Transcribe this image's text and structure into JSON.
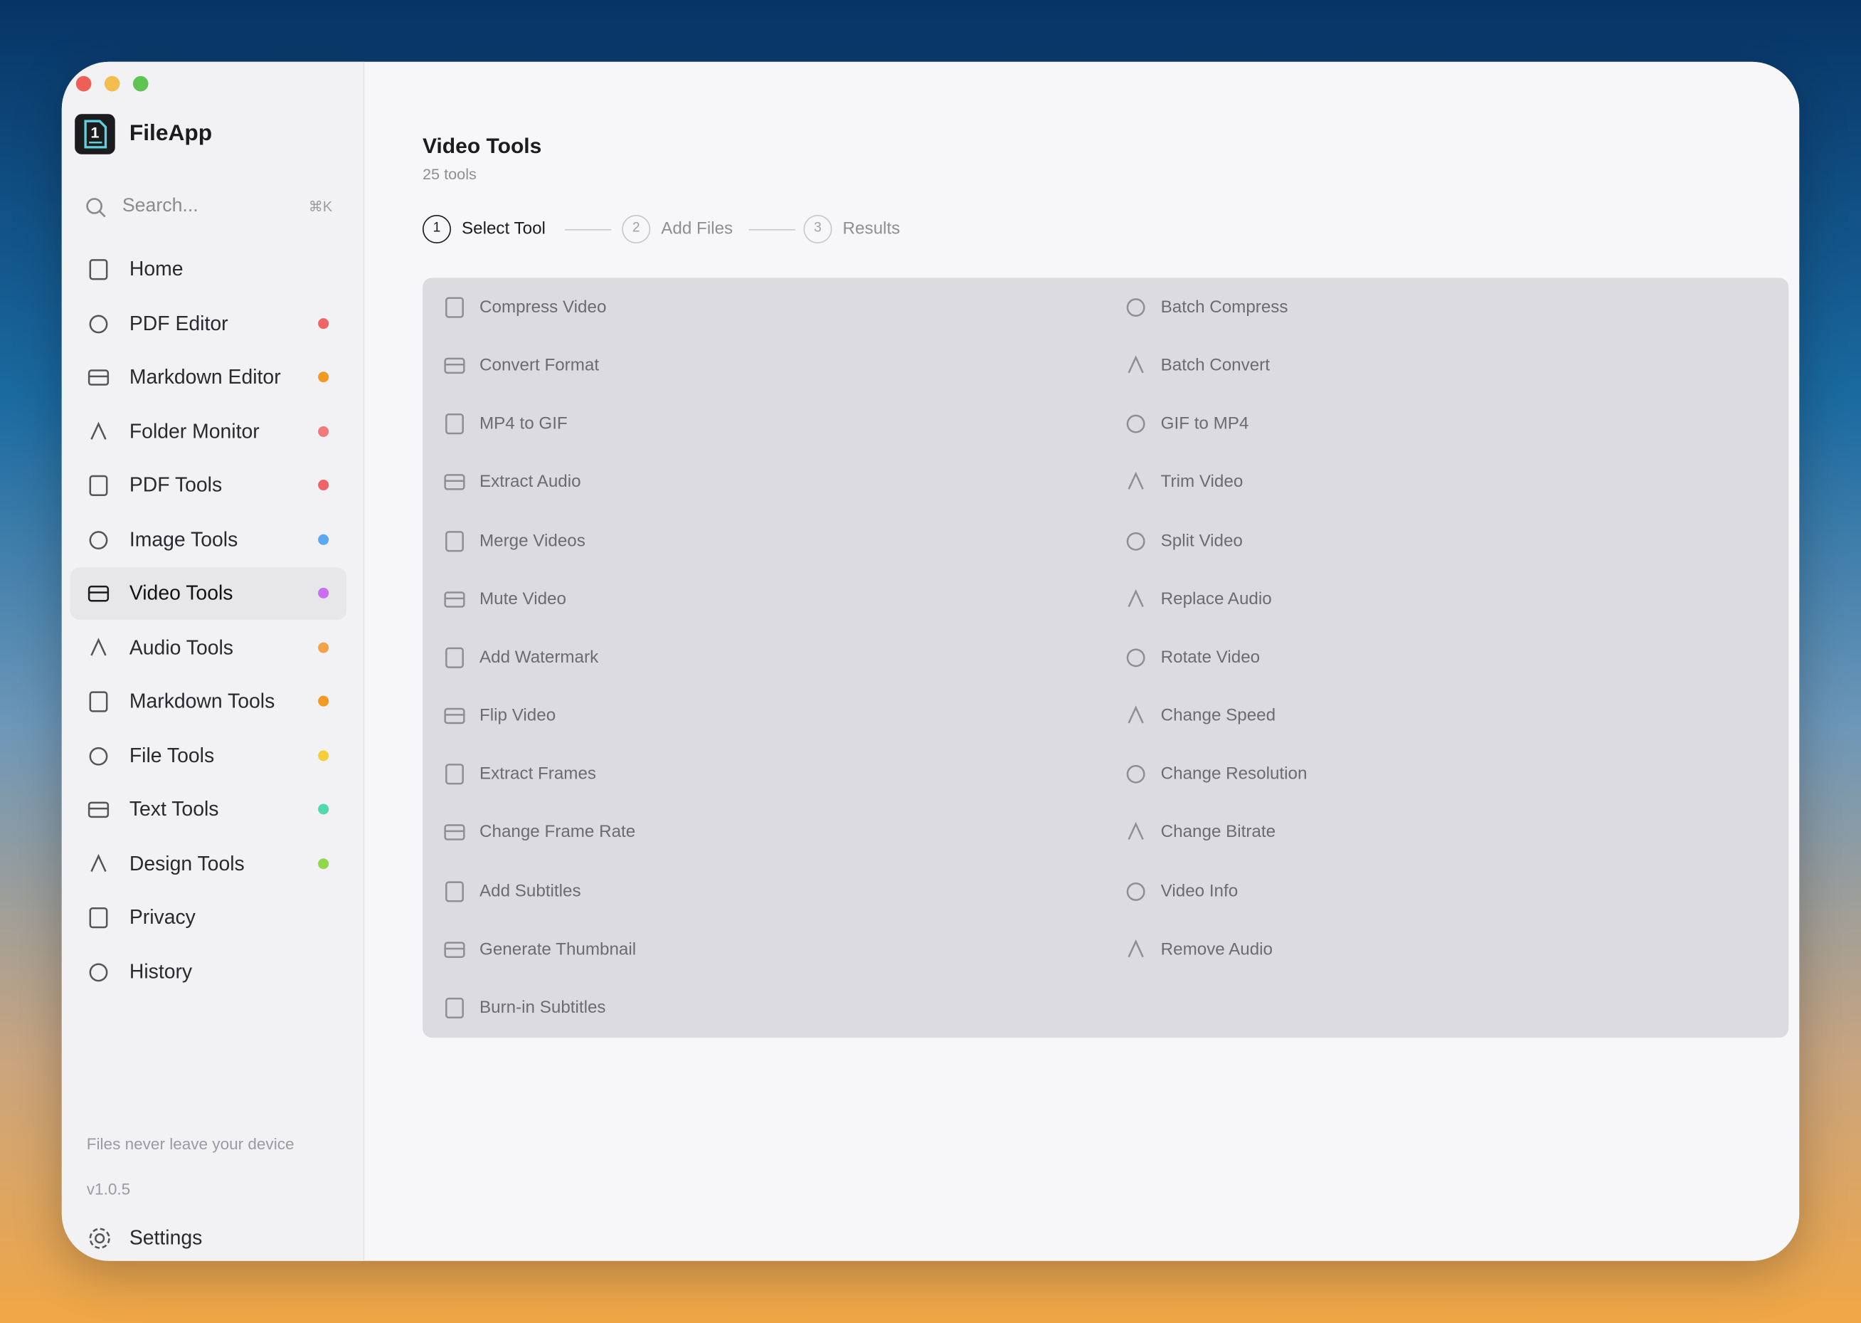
{
  "app": {
    "name": "FileApp",
    "window_controls": [
      "#ee5f57",
      "#f4bd4f",
      "#5fc454"
    ]
  },
  "search": {
    "placeholder": "Search...",
    "shortcut": "⌘K"
  },
  "nav": [
    {
      "label": "Home"
    },
    {
      "label": "PDF Editor",
      "dot": "#ef6464"
    },
    {
      "label": "Markdown Editor",
      "dot": "#f29a22"
    },
    {
      "label": "Folder Monitor",
      "dot": "#f07a7a"
    },
    {
      "label": "PDF Tools",
      "dot": "#ef6464"
    },
    {
      "label": "Image Tools",
      "dot": "#5aa9f0"
    },
    {
      "label": "Video Tools",
      "dot": "#c96ef0",
      "active": true
    },
    {
      "label": "Audio Tools",
      "dot": "#f4a24a"
    },
    {
      "label": "Markdown Tools",
      "dot": "#f29a22"
    },
    {
      "label": "File Tools",
      "dot": "#f5cf3a"
    },
    {
      "label": "Text Tools",
      "dot": "#4fd9ad"
    },
    {
      "label": "Design Tools",
      "dot": "#8ed84a"
    },
    {
      "label": "Privacy"
    },
    {
      "label": "History"
    }
  ],
  "footer": {
    "note": "Files never leave your device",
    "version": "v1.0.5",
    "settings": "Settings"
  },
  "main": {
    "title": "Video Tools",
    "subtitle": "25 tools",
    "steps": [
      {
        "number": "1",
        "label": "Select Tool",
        "active": true
      },
      {
        "number": "2",
        "label": "Add Files"
      },
      {
        "number": "3",
        "label": "Results"
      }
    ],
    "tools": [
      "Compress Video",
      "Batch Compress",
      "Convert Format",
      "Batch Convert",
      "MP4 to GIF",
      "GIF to MP4",
      "Extract Audio",
      "Trim Video",
      "Merge Videos",
      "Split Video",
      "Mute Video",
      "Replace Audio",
      "Add Watermark",
      "Rotate Video",
      "Flip Video",
      "Change Speed",
      "Extract Frames",
      "Change Resolution",
      "Change Frame Rate",
      "Change Bitrate",
      "Add Subtitles",
      "Video Info",
      "Generate Thumbnail",
      "Remove Audio",
      "Burn-in Subtitles"
    ]
  }
}
